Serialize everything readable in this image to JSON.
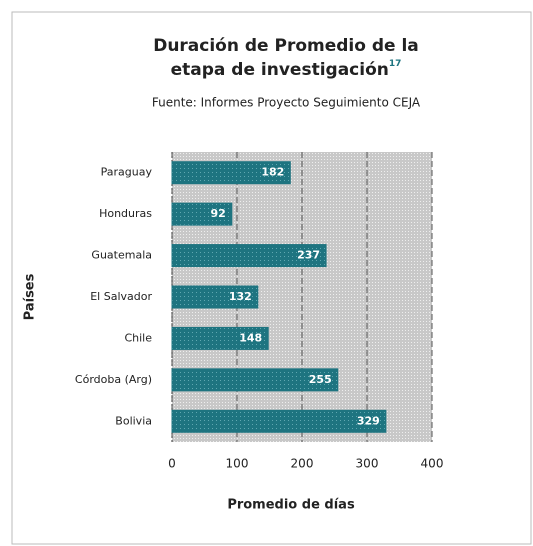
{
  "chart_data": {
    "type": "bar",
    "orientation": "horizontal",
    "title_lines": [
      "Duración de Promedio de la",
      "etapa de investigación"
    ],
    "title_note": "17",
    "subtitle": "Fuente: Informes Proyecto Seguimiento CEJA",
    "categories": [
      "Paraguay",
      "Honduras",
      "Guatemala",
      "El Salvador",
      "Chile",
      "Córdoba (Arg)",
      "Bolivia"
    ],
    "values": [
      182,
      92,
      237,
      132,
      148,
      255,
      329
    ],
    "color": "#1e7480",
    "xlim": [
      0,
      400
    ],
    "xticks": [
      0,
      100,
      200,
      300,
      400
    ],
    "grid": true,
    "x_label": "Promedio de días",
    "y_label": "Países"
  }
}
